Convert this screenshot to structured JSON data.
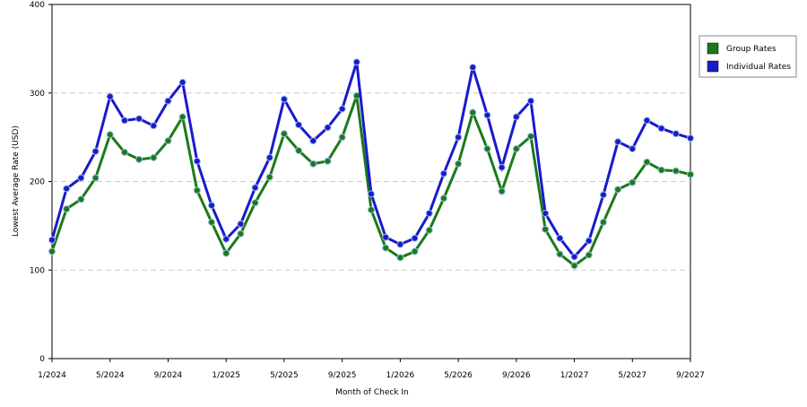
{
  "chart_data": {
    "type": "line",
    "x_label": "Month of Check In",
    "y_label": "Lowest Average Rate (USD)",
    "categories": [
      "1/2024",
      null,
      null,
      null,
      "5/2024",
      null,
      null,
      null,
      "9/2024",
      null,
      null,
      null,
      "1/2025",
      null,
      null,
      null,
      "5/2025",
      null,
      null,
      null,
      "9/2025",
      null,
      null,
      null,
      "1/2026",
      null,
      null,
      null,
      "5/2026",
      null,
      null,
      null,
      "9/2026",
      null,
      null,
      null,
      "1/2027",
      null,
      null,
      null,
      "5/2027",
      null,
      null,
      null,
      "9/2027"
    ],
    "series": [
      {
        "name": "Group Rates",
        "color": "#1a7a1a",
        "values": [
          121,
          169,
          180,
          204,
          253,
          233,
          225,
          227,
          246,
          273,
          190,
          154,
          119,
          141,
          176,
          205,
          254,
          235,
          220,
          223,
          250,
          297,
          168,
          125,
          114,
          121,
          145,
          181,
          220,
          278,
          237,
          189,
          237,
          251,
          146,
          118,
          105,
          117,
          154,
          191,
          199,
          222,
          213,
          212,
          208
        ]
      },
      {
        "name": "Individual Rates",
        "color": "#1a1acc",
        "values": [
          134,
          192,
          204,
          234,
          296,
          269,
          271,
          263,
          291,
          312,
          223,
          173,
          135,
          152,
          193,
          227,
          293,
          264,
          246,
          261,
          282,
          335,
          186,
          137,
          129,
          136,
          164,
          209,
          250,
          329,
          275,
          216,
          273,
          291,
          164,
          136,
          115,
          133,
          185,
          245,
          237,
          269,
          260,
          254,
          249
        ]
      }
    ],
    "ylim": [
      0,
      400
    ],
    "yticks": [
      0,
      100,
      200,
      300,
      400
    ],
    "grid": true,
    "legend": "right"
  }
}
